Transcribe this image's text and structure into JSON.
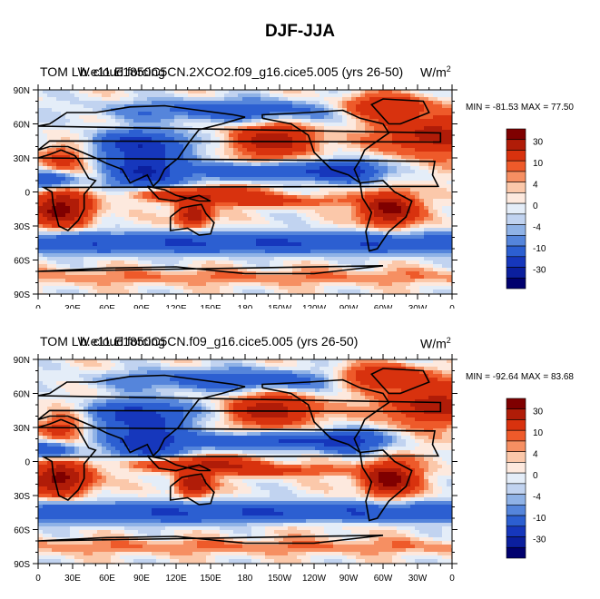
{
  "figure": {
    "title": "DJF-JJA"
  },
  "panels": [
    {
      "left_label": "TOM LW cloud forcing",
      "case_label": "b.e11.E1850C5CN.2XCO2.f09_g16.cice5.005 (yrs 26-50)",
      "units_base": "W/m",
      "units_exp": "2",
      "min_label": "MIN = ",
      "min_value": "-81.53",
      "max_label": " MAX = ",
      "max_value": "77.50"
    },
    {
      "left_label": "TOM LW cloud forcing",
      "case_label": "b.e11.E1850C5CN.f09_g16.cice5.005 (yrs 26-50)",
      "units_base": "W/m",
      "units_exp": "2",
      "min_label": "MIN = ",
      "min_value": "-92.64",
      "max_label": " MAX = ",
      "max_value": "83.68"
    }
  ],
  "chart_data": {
    "type": "heatmap",
    "title": "DJF-JJA",
    "x_ticks": [
      "0",
      "30E",
      "60E",
      "90E",
      "120E",
      "150E",
      "180",
      "150W",
      "120W",
      "90W",
      "60W",
      "30W",
      "0"
    ],
    "y_ticks": [
      "90N",
      "60N",
      "30N",
      "0",
      "30S",
      "60S",
      "90S"
    ],
    "colorbar": {
      "labels": [
        "30",
        "10",
        "4",
        "0",
        "-4",
        "-10",
        "-30"
      ],
      "colors": [
        "#7f0000",
        "#b01c08",
        "#d8320e",
        "#ee5a2a",
        "#f68f62",
        "#fbc8aa",
        "#fde9de",
        "#e4edf8",
        "#c1d3f0",
        "#8fb2e6",
        "#5585db",
        "#2c5fd1",
        "#1637bc",
        "#0b1f9e",
        "#00006e"
      ]
    },
    "panels": [
      {
        "case": "b.e11.E1850C5CN.2XCO2.f09_g16.cice5.005 (yrs 26-50)",
        "min": -81.53,
        "max": 77.5
      },
      {
        "case": "b.e11.E1850C5CN.f09_g16.cice5.005 (yrs 26-50)",
        "min": -92.64,
        "max": 83.68
      }
    ]
  }
}
